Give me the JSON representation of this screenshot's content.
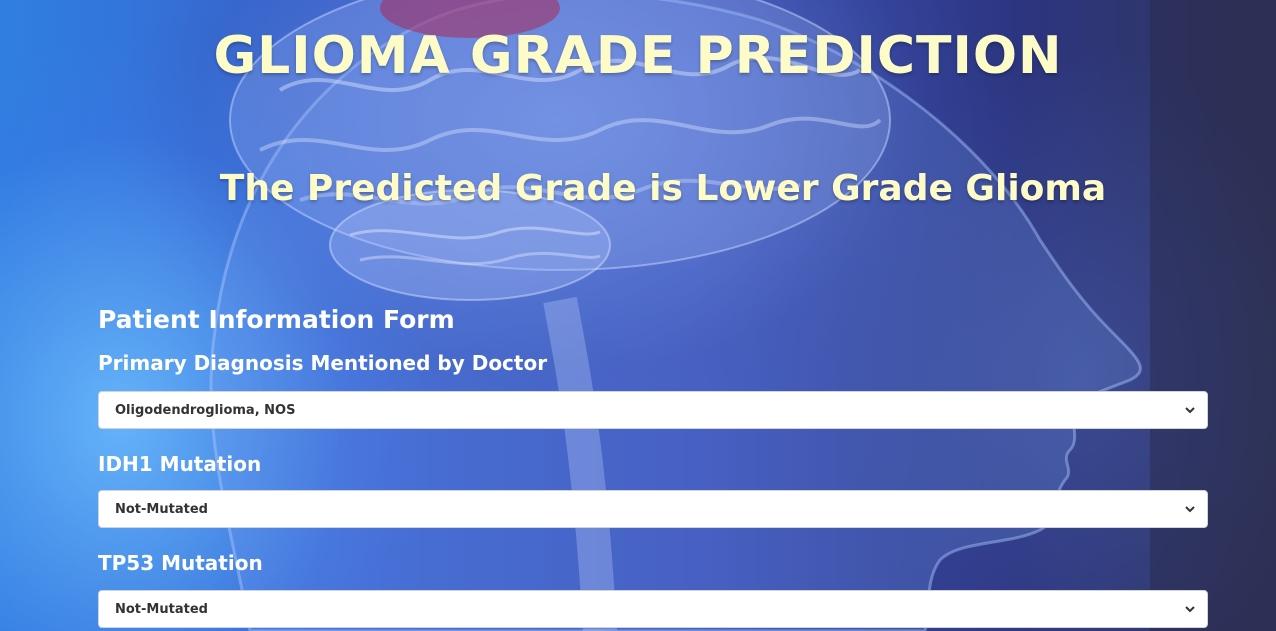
{
  "header": {
    "title": "GLIOMA GRADE PREDICTION",
    "result": "The Predicted Grade is Lower Grade Glioma"
  },
  "form": {
    "title": "Patient Information Form",
    "fields": [
      {
        "label": "Primary Diagnosis Mentioned by Doctor",
        "value": "Oligodendroglioma, NOS"
      },
      {
        "label": "IDH1 Mutation",
        "value": "Not-Mutated"
      },
      {
        "label": "TP53 Mutation",
        "value": "Not-Mutated"
      }
    ]
  },
  "colors": {
    "title_text": "#fdfcc8",
    "label_text": "#ffffff",
    "select_bg": "#ffffff",
    "background_blue": "#3a4fb6"
  },
  "icons": {
    "select_arrow": "chevron-down-icon"
  }
}
